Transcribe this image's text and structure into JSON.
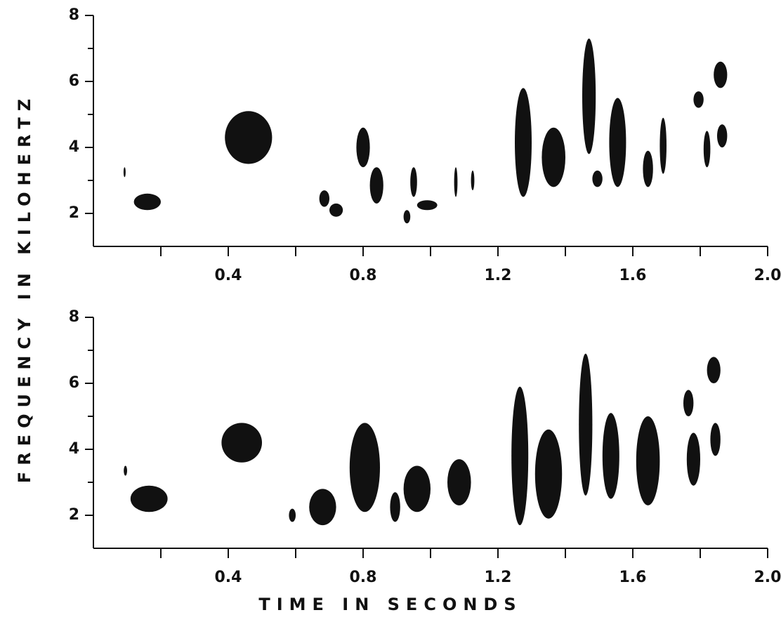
{
  "ylabel": "FREQUENCY IN KILOHERTZ",
  "xlabel": "TIME IN SECONDS",
  "chart_data": [
    {
      "type": "spectrogram",
      "xlim": [
        0,
        2.0
      ],
      "xticks": [
        0.4,
        0.8,
        1.2,
        {
          "value": 2.0,
          "label": "2.0"
        },
        1.6
      ],
      "xminor": [
        0.2,
        0.6,
        1.0,
        1.4,
        1.8
      ],
      "ylim": [
        1,
        8
      ],
      "yticks": [
        2,
        4,
        6,
        8
      ],
      "yminor": [
        3,
        5,
        7
      ],
      "color": "#111111",
      "segments": [
        [
          0.09,
          0.095,
          3.1,
          3.4
        ],
        [
          0.12,
          0.2,
          2.1,
          2.6
        ],
        [
          0.39,
          0.53,
          3.5,
          5.1
        ],
        [
          0.67,
          0.7,
          2.2,
          2.7
        ],
        [
          0.7,
          0.74,
          1.9,
          2.3
        ],
        [
          0.78,
          0.82,
          3.4,
          4.6
        ],
        [
          0.82,
          0.86,
          2.3,
          3.4
        ],
        [
          0.92,
          0.94,
          1.7,
          2.1
        ],
        [
          0.94,
          0.96,
          2.5,
          3.4
        ],
        [
          0.96,
          1.02,
          2.1,
          2.4
        ],
        [
          1.07,
          1.08,
          2.5,
          3.4
        ],
        [
          1.12,
          1.13,
          2.7,
          3.3
        ],
        [
          1.25,
          1.3,
          2.5,
          5.8
        ],
        [
          1.33,
          1.4,
          2.8,
          4.6
        ],
        [
          1.45,
          1.49,
          3.8,
          7.3
        ],
        [
          1.48,
          1.51,
          2.8,
          3.3
        ],
        [
          1.53,
          1.58,
          2.8,
          5.5
        ],
        [
          1.63,
          1.66,
          2.8,
          3.9
        ],
        [
          1.68,
          1.7,
          3.2,
          4.9
        ],
        [
          1.78,
          1.81,
          5.2,
          5.7
        ],
        [
          1.81,
          1.83,
          3.4,
          4.5
        ],
        [
          1.84,
          1.88,
          5.8,
          6.6
        ],
        [
          1.85,
          1.88,
          4.0,
          4.7
        ]
      ]
    },
    {
      "type": "spectrogram",
      "xlim": [
        0,
        2.0
      ],
      "xticks": [
        0.4,
        0.8,
        1.2,
        {
          "value": 2.0,
          "label": "2.0"
        },
        1.6
      ],
      "xminor": [
        0.2,
        0.6,
        1.0,
        1.4,
        1.8
      ],
      "ylim": [
        1,
        8
      ],
      "yticks": [
        2,
        4,
        6,
        8
      ],
      "yminor": [
        3,
        5,
        7
      ],
      "color": "#111111",
      "segments": [
        [
          0.09,
          0.1,
          3.2,
          3.5
        ],
        [
          0.11,
          0.22,
          2.1,
          2.9
        ],
        [
          0.38,
          0.5,
          3.6,
          4.8
        ],
        [
          0.58,
          0.6,
          1.8,
          2.2
        ],
        [
          0.64,
          0.72,
          1.7,
          2.8
        ],
        [
          0.76,
          0.85,
          2.1,
          4.8
        ],
        [
          0.88,
          0.91,
          1.8,
          2.7
        ],
        [
          0.92,
          1.0,
          2.1,
          3.5
        ],
        [
          1.05,
          1.12,
          2.3,
          3.7
        ],
        [
          1.24,
          1.29,
          1.7,
          5.9
        ],
        [
          1.31,
          1.39,
          1.9,
          4.6
        ],
        [
          1.44,
          1.48,
          2.6,
          6.9
        ],
        [
          1.51,
          1.56,
          2.5,
          5.1
        ],
        [
          1.61,
          1.68,
          2.3,
          5.0
        ],
        [
          1.75,
          1.78,
          5.0,
          5.8
        ],
        [
          1.76,
          1.8,
          2.9,
          4.5
        ],
        [
          1.82,
          1.86,
          6.0,
          6.8
        ],
        [
          1.83,
          1.86,
          3.8,
          4.8
        ]
      ]
    }
  ]
}
